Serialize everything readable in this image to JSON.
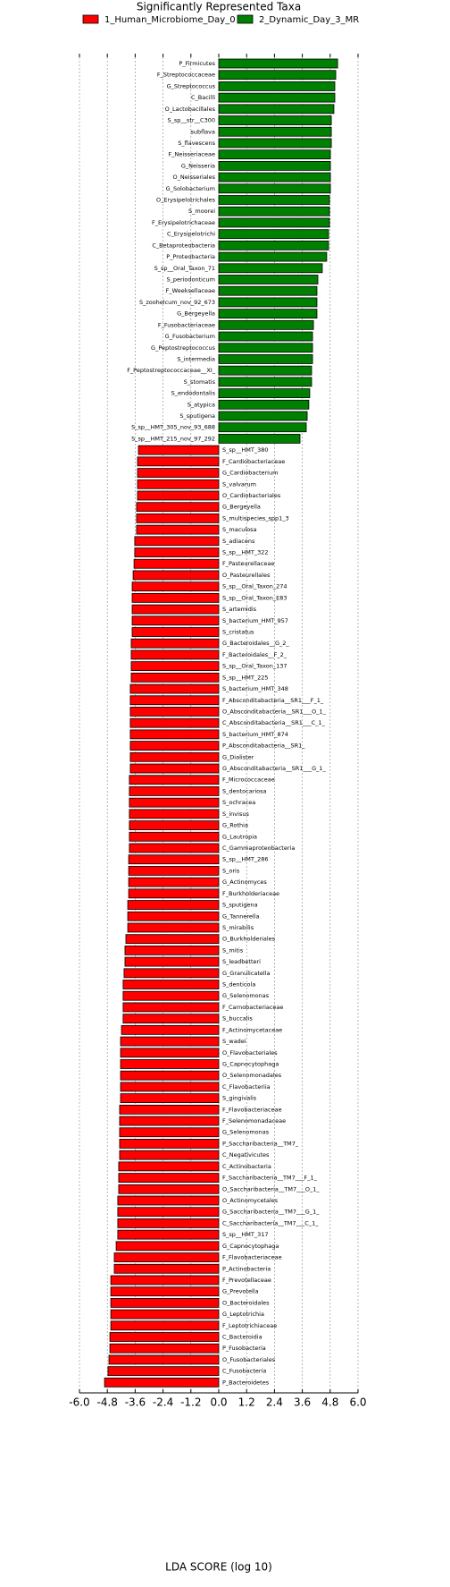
{
  "chart_data": {
    "type": "barh",
    "title": "Significantly Represented Taxa",
    "xlabel": "LDA SCORE (log 10)",
    "xlim": [
      -6.0,
      6.0
    ],
    "xticks": [
      {
        "value": -6.0,
        "label": "-6.0"
      },
      -4.8,
      -3.6,
      -2.4,
      -1.2,
      {
        "value": 0.0,
        "label": "0.0"
      },
      1.2,
      2.4,
      3.6,
      4.8,
      {
        "value": 6.0,
        "label": "6.0"
      }
    ],
    "grid": true,
    "series": [
      {
        "name": "1_Human_Microbiome_Day_0",
        "color": "#ff0000",
        "categories": [
          "S_sp__HMT_380",
          "F_Cardiobacteriaceae",
          "G_Cardiobacterium",
          "S_valvarum",
          "O_Cardiobacteriales",
          "G_Bergeyella",
          "S_multispecies_spp1_3",
          "S_maculosa",
          "S_adiacens",
          "S_sp__HMT_322",
          "F_Pasteurellaceae",
          "O_Pasteurellales",
          "S_sp__Oral_Taxon_274",
          "S_sp__Oral_Taxon_E83",
          "S_artemidis",
          "S_bacterium_HMT_957",
          "S_cristatus",
          "G_Bacteroidales__G_2_",
          "F_Bacteroidales__F_2_",
          "S_sp__Oral_Taxon_137",
          "S_sp__HMT_225",
          "S_bacterium_HMT_348",
          "F_Absconditabacteria__SR1___F_1_",
          "O_Absconditabacteria__SR1___O_1_",
          "C_Absconditabacteria__SR1___C_1_",
          "S_bacterium_HMT_874",
          "P_Absconditabacteria__SR1_",
          "G_Dialister",
          "G_Absconditabacteria__SR1___G_1_",
          "F_Micrococcaceae",
          "S_dentocariosa",
          "S_ochracea",
          "S_invisus",
          "G_Rothia",
          "G_Lautropia",
          "C_Gammaproteobacteria",
          "S_sp__HMT_286",
          "S_oris",
          "G_Actinomyces",
          "F_Burkholderiaceae",
          "S_sputigena",
          "G_Tannerella",
          "S_mirabilis",
          "O_Burkholderiales",
          "S_mitis",
          "S_leadbetteri",
          "G_Granulicatella",
          "S_denticola",
          "G_Selenomonas",
          "F_Carnobacteriaceae",
          "S_buccalis",
          "F_Actinomycetaceae",
          "S_wadei",
          "O_Flavobacteriales",
          "G_Capnocytophaga",
          "O_Selenomonadales",
          "C_Flavobacteriia",
          "S_gingivalis",
          "F_Flavobacteriaceae",
          "F_Selenomonadaceae",
          "G_Selenomonas",
          "P_Saccharibacteria__TM7_",
          "C_Negativicutes",
          "C_Actinobacteria",
          "F_Saccharibacteria__TM7___F_1_",
          "O_Saccharibacteria__TM7___O_1_",
          "O_Actinomycetales",
          "G_Saccharibacteria__TM7___G_1_",
          "C_Saccharibacteria__TM7___C_1_",
          "S_sp__HMT_317",
          "G_Capnocytophaga",
          "F_Flavobacteriaceae",
          "P_Actinobacteria",
          "F_Prevotellaceae",
          "G_Prevotella",
          "O_Bacteroidales",
          "G_Leptotrichia",
          "F_Leptotrichiaceae",
          "C_Bacteroidia",
          "P_Fusobacteria",
          "O_Fusobacteriales",
          "C_Fusobacteria",
          "P_Bacteroidetes"
        ],
        "values": [
          -3.46,
          -3.5,
          -3.5,
          -3.5,
          -3.5,
          -3.54,
          -3.54,
          -3.54,
          -3.62,
          -3.62,
          -3.65,
          -3.69,
          -3.73,
          -3.73,
          -3.73,
          -3.73,
          -3.73,
          -3.77,
          -3.77,
          -3.77,
          -3.77,
          -3.81,
          -3.81,
          -3.81,
          -3.81,
          -3.81,
          -3.81,
          -3.81,
          -3.81,
          -3.85,
          -3.85,
          -3.85,
          -3.85,
          -3.85,
          -3.85,
          -3.85,
          -3.88,
          -3.88,
          -3.88,
          -3.88,
          -3.92,
          -3.92,
          -3.92,
          -4.0,
          -4.04,
          -4.04,
          -4.08,
          -4.12,
          -4.12,
          -4.12,
          -4.12,
          -4.19,
          -4.23,
          -4.23,
          -4.23,
          -4.23,
          -4.23,
          -4.23,
          -4.27,
          -4.27,
          -4.27,
          -4.27,
          -4.27,
          -4.31,
          -4.31,
          -4.31,
          -4.35,
          -4.35,
          -4.35,
          -4.35,
          -4.42,
          -4.5,
          -4.5,
          -4.65,
          -4.65,
          -4.65,
          -4.65,
          -4.65,
          -4.69,
          -4.69,
          -4.73,
          -4.77,
          -4.92
        ]
      },
      {
        "name": "2_Dynamic_Day_3_MR",
        "color": "#008000",
        "categories": [
          "P_Firmicutes",
          "F_Streptococcaceae",
          "G_Streptococcus",
          "C_Bacilli",
          "O_Lactobacillales",
          "S_sp__str__C300",
          "subflava",
          "S_flavescens",
          "F_Neisseriaceae",
          "G_Neisseria",
          "O_Neisseriales",
          "G_Solobacterium",
          "O_Erysipelotrichales",
          "S_moorei",
          "F_Erysipelotrichaceae",
          "C_Erysipelotrichi",
          "C_Betaproteobacteria",
          "P_Proteobacteria",
          "S_sp__Oral_Taxon_71",
          "S_periodonticum",
          "F_Weeksellaceae",
          "S_zoohelcum_nov_92_673",
          "G_Bergeyella",
          "F_Fusobacteriaceae",
          "G_Fusobacterium",
          "G_Peptostreptococcus",
          "S_intermedia",
          "F_Peptostreptococcaceae__XI_",
          "S_stomatis",
          "S_endodontalis",
          "S_atypica",
          "S_sputigena",
          "S_sp__HMT_305_nov_93_688",
          "S_sp__HMT_215_nov_97_292"
        ],
        "values": [
          5.12,
          5.04,
          5.0,
          5.0,
          4.96,
          4.85,
          4.85,
          4.85,
          4.81,
          4.81,
          4.81,
          4.81,
          4.77,
          4.77,
          4.77,
          4.73,
          4.73,
          4.65,
          4.46,
          4.27,
          4.23,
          4.23,
          4.23,
          4.08,
          4.04,
          4.04,
          4.04,
          4.0,
          4.0,
          3.92,
          3.88,
          3.81,
          3.77,
          3.5
        ]
      }
    ]
  }
}
